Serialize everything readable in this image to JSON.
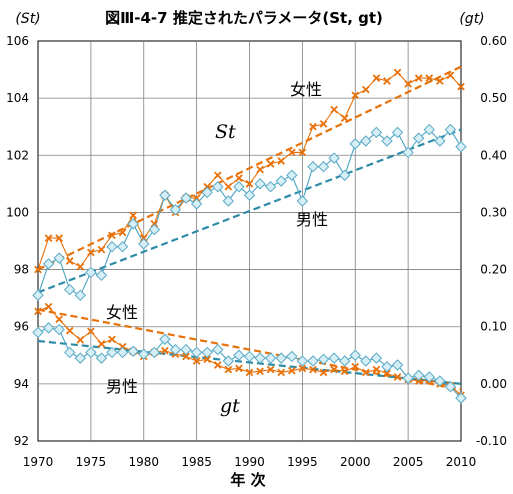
{
  "chart_data": {
    "type": "line",
    "title": "図Ⅲ-4-7 推定されたパラメータ(St, gt)",
    "xlabel": "年 次",
    "y_left_label": "(St)",
    "y_right_label": "(gt)",
    "xlim": [
      1970,
      2010
    ],
    "xticks": [
      1970,
      1975,
      1980,
      1985,
      1990,
      1995,
      2000,
      2005,
      2010
    ],
    "ylim_left": [
      92,
      106
    ],
    "yticks_left": [
      "92",
      "94",
      "96",
      "98",
      "100",
      "102",
      "104",
      "106"
    ],
    "ylim_right": [
      -0.1,
      0.6
    ],
    "yticks_right": [
      "-0.10",
      "0.00",
      "0.10",
      "0.20",
      "0.30",
      "0.40",
      "0.50",
      "0.60"
    ],
    "grid": "vertical and horizontal",
    "labels": {
      "St": "St",
      "gt": "gt",
      "female_upper": "女性",
      "male_upper": "男性",
      "female_lower": "女性",
      "male_lower": "男性"
    },
    "x": [
      1970,
      1971,
      1972,
      1973,
      1974,
      1975,
      1976,
      1977,
      1978,
      1979,
      1980,
      1981,
      1982,
      1983,
      1984,
      1985,
      1986,
      1987,
      1988,
      1989,
      1990,
      1991,
      1992,
      1993,
      1994,
      1995,
      1996,
      1997,
      1998,
      1999,
      2000,
      2001,
      2002,
      2003,
      2004,
      2005,
      2006,
      2007,
      2008,
      2009,
      2010
    ],
    "series": [
      {
        "name": "女性",
        "axis": "left",
        "marker": "x",
        "color": "#E8710A",
        "values": [
          98.0,
          99.1,
          99.1,
          98.3,
          98.1,
          98.6,
          98.7,
          99.2,
          99.3,
          99.9,
          99.1,
          99.6,
          100.6,
          100.0,
          100.5,
          100.5,
          100.9,
          101.3,
          100.9,
          101.2,
          101.0,
          101.5,
          101.7,
          101.8,
          102.1,
          102.1,
          103.0,
          103.1,
          103.6,
          103.3,
          104.1,
          104.3,
          104.7,
          104.6,
          104.9,
          104.5,
          104.7,
          104.7,
          104.6,
          104.8,
          104.4
        ]
      },
      {
        "name": "男性",
        "axis": "left",
        "marker": "diamond",
        "color": "#4AA3C3",
        "values": [
          97.1,
          98.2,
          98.4,
          97.3,
          97.1,
          97.9,
          97.8,
          98.8,
          98.8,
          99.6,
          98.9,
          99.4,
          100.6,
          100.1,
          100.5,
          100.3,
          100.7,
          100.9,
          100.4,
          100.9,
          100.6,
          101.0,
          100.9,
          101.1,
          101.3,
          100.4,
          101.6,
          101.6,
          101.9,
          101.3,
          102.4,
          102.5,
          102.8,
          102.5,
          102.8,
          102.1,
          102.6,
          102.9,
          102.5,
          102.9,
          102.3
        ]
      },
      {
        "name": "女性",
        "axis": "right",
        "marker": "x",
        "color": "#E8710A",
        "values": [
          0.127,
          0.135,
          0.113,
          0.093,
          0.077,
          0.092,
          0.07,
          0.078,
          0.065,
          0.057,
          0.048,
          0.055,
          0.058,
          0.052,
          0.048,
          0.04,
          0.043,
          0.033,
          0.025,
          0.027,
          0.02,
          0.022,
          0.025,
          0.02,
          0.023,
          0.027,
          0.025,
          0.02,
          0.025,
          0.022,
          0.03,
          0.02,
          0.025,
          0.018,
          0.012,
          0.008,
          0.005,
          0.007,
          0.0,
          -0.003,
          -0.02
        ]
      },
      {
        "name": "男性",
        "axis": "right",
        "marker": "diamond",
        "color": "#4AA3C3",
        "values": [
          0.09,
          0.098,
          0.095,
          0.055,
          0.045,
          0.055,
          0.045,
          0.055,
          0.055,
          0.057,
          0.052,
          0.055,
          0.078,
          0.06,
          0.06,
          0.055,
          0.055,
          0.06,
          0.04,
          0.05,
          0.048,
          0.045,
          0.045,
          0.045,
          0.048,
          0.04,
          0.04,
          0.043,
          0.045,
          0.04,
          0.05,
          0.04,
          0.045,
          0.03,
          0.033,
          0.01,
          0.015,
          0.012,
          0.005,
          -0.005,
          -0.025
        ]
      }
    ],
    "trendlines": [
      {
        "series": "女性",
        "axis": "left",
        "style": "dashed",
        "color": "#E8710A",
        "from": [
          1970,
          98.0
        ],
        "to": [
          2010,
          105.1
        ]
      },
      {
        "series": "男性",
        "axis": "left",
        "style": "dashed",
        "color": "#2E8BA8",
        "from": [
          1970,
          97.2
        ],
        "to": [
          2010,
          102.9
        ]
      },
      {
        "series": "女性",
        "axis": "right",
        "style": "dashed",
        "color": "#E8710A",
        "from": [
          1970,
          0.13
        ],
        "to": [
          2010,
          -0.01
        ]
      },
      {
        "series": "男性",
        "axis": "right",
        "style": "dashed",
        "color": "#2E8BA8",
        "from": [
          1970,
          0.075
        ],
        "to": [
          2010,
          0.0
        ]
      }
    ]
  }
}
